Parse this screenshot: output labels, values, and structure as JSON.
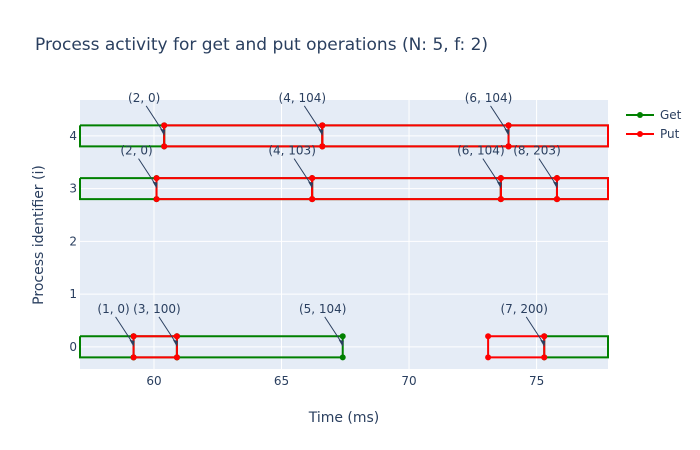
{
  "chart_data": {
    "type": "line",
    "title": "Process activity for get and put operations (N: 5, f: 2)",
    "xlabel": "Time (ms)",
    "ylabel": "Process identifier (i)",
    "xlim": [
      57.1,
      77.8
    ],
    "ylim": [
      -0.42,
      4.68
    ],
    "x_ticks": [
      60,
      65,
      70,
      75
    ],
    "y_ticks": [
      0,
      1,
      2,
      3,
      4
    ],
    "grid": true,
    "legend_position": "top-right",
    "colors": {
      "Get": "#008000",
      "Put": "#ff0000",
      "plot_bg": "#e5ecf6"
    },
    "legend": [
      "Get",
      "Put"
    ],
    "series": [
      {
        "name": "Get",
        "color": "#008000",
        "segments": [
          {
            "process": 4,
            "start": 57.1,
            "end": 60.4,
            "open_start": true
          },
          {
            "process": 4,
            "start": 60.4,
            "end": 66.6
          },
          {
            "process": 4,
            "start": 66.6,
            "end": 73.9
          },
          {
            "process": 4,
            "start": 73.9,
            "end": 77.8,
            "open_end": true
          },
          {
            "process": 3,
            "start": 57.1,
            "end": 60.1,
            "open_start": true
          },
          {
            "process": 3,
            "start": 60.1,
            "end": 66.2
          },
          {
            "process": 3,
            "start": 66.2,
            "end": 73.6
          },
          {
            "process": 3,
            "start": 73.6,
            "end": 75.8
          },
          {
            "process": 3,
            "start": 75.8,
            "end": 77.8,
            "open_end": true
          },
          {
            "process": 0,
            "start": 57.1,
            "end": 59.2,
            "open_start": true
          },
          {
            "process": 0,
            "start": 59.2,
            "end": 60.9
          },
          {
            "process": 0,
            "start": 60.9,
            "end": 67.4
          },
          {
            "process": 0,
            "start": 75.3,
            "end": 77.8,
            "open_end": true
          }
        ]
      },
      {
        "name": "Put",
        "color": "#ff0000",
        "segments": [
          {
            "process": 4,
            "start": 60.4,
            "end": 66.6
          },
          {
            "process": 4,
            "start": 66.6,
            "end": 73.9
          },
          {
            "process": 4,
            "start": 73.9,
            "end": 77.8,
            "open_end": true
          },
          {
            "process": 3,
            "start": 60.1,
            "end": 66.2
          },
          {
            "process": 3,
            "start": 66.2,
            "end": 73.6
          },
          {
            "process": 3,
            "start": 73.6,
            "end": 75.8
          },
          {
            "process": 3,
            "start": 75.8,
            "end": 77.8,
            "open_end": true
          },
          {
            "process": 0,
            "start": 59.2,
            "end": 60.9
          },
          {
            "process": 0,
            "start": 73.1,
            "end": 75.3
          }
        ]
      }
    ],
    "annotations": [
      {
        "text": "(2, 0)",
        "process": 4,
        "x": 60.4
      },
      {
        "text": "(4, 104)",
        "process": 4,
        "x": 66.6
      },
      {
        "text": "(6, 104)",
        "process": 4,
        "x": 73.9
      },
      {
        "text": "(2, 0)",
        "process": 3,
        "x": 60.1
      },
      {
        "text": "(4, 103)",
        "process": 3,
        "x": 66.2
      },
      {
        "text": "(6, 104)",
        "process": 3,
        "x": 73.6
      },
      {
        "text": "(8, 203)",
        "process": 3,
        "x": 75.8
      },
      {
        "text": "(1, 0)",
        "process": 0,
        "x": 59.2
      },
      {
        "text": "(3, 100)",
        "process": 0,
        "x": 60.9
      },
      {
        "text": "(5, 104)",
        "process": 0,
        "x": 67.4
      },
      {
        "text": "(7, 200)",
        "process": 0,
        "x": 75.3
      }
    ]
  }
}
